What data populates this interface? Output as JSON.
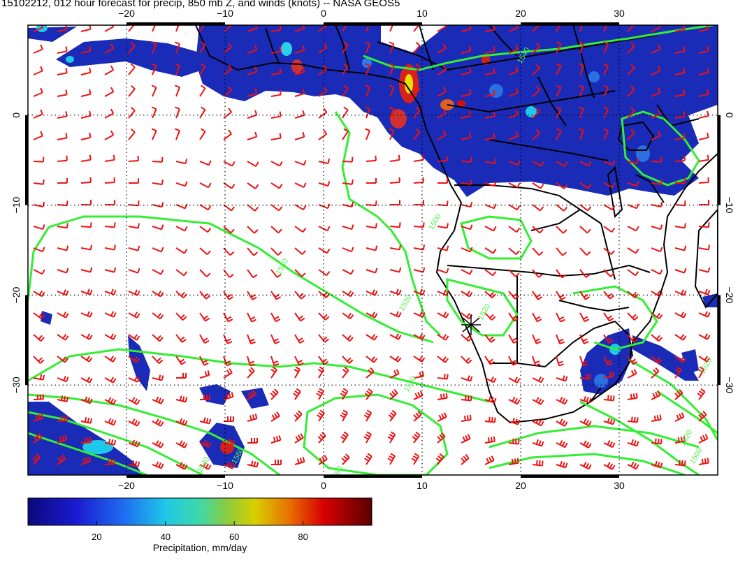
{
  "title": "15102212, 012 hour forecast for precip, 850 mb Z, and winds (knots) -- NASA GEOS5",
  "map": {
    "lon_range": [
      -30,
      40
    ],
    "lat_range": [
      -40,
      10
    ],
    "lon_ticks": [
      {
        "v": -20,
        "label": "−20"
      },
      {
        "v": -10,
        "label": "−10"
      },
      {
        "v": 0,
        "label": "0"
      },
      {
        "v": 10,
        "label": "10"
      },
      {
        "v": 20,
        "label": "20"
      },
      {
        "v": 30,
        "label": "30"
      }
    ],
    "lat_ticks": [
      {
        "v": 0,
        "label": "0"
      },
      {
        "v": -10,
        "label": "−10"
      },
      {
        "v": -20,
        "label": "−20"
      },
      {
        "v": -30,
        "label": "−30"
      }
    ],
    "grid": "dotted",
    "colors": {
      "contour": "#33ee33",
      "barb": "#ee1111",
      "coast": "#000000",
      "precip_base": "#1a2bb8"
    }
  },
  "colorbar": {
    "label": "Precipitation, mm/day",
    "range": [
      0,
      100
    ],
    "ticks": [
      {
        "v": 20,
        "label": "20"
      },
      {
        "v": 40,
        "label": "40"
      },
      {
        "v": 60,
        "label": "60"
      },
      {
        "v": 80,
        "label": "80"
      }
    ]
  },
  "contour_labels": [
    {
      "text": "1540",
      "lon": 20.5,
      "lat": 6.5
    },
    {
      "text": "1540",
      "lon": -4,
      "lat": -17
    },
    {
      "text": "1500",
      "lon": 11.5,
      "lat": -12
    },
    {
      "text": "1520",
      "lon": 8.5,
      "lat": -21
    },
    {
      "text": "1520",
      "lon": 16.5,
      "lat": -22
    },
    {
      "text": "1520",
      "lon": 39,
      "lat": -28
    },
    {
      "text": "1540",
      "lon": 9,
      "lat": -30
    },
    {
      "text": "1560",
      "lon": -8.5,
      "lat": -38
    },
    {
      "text": "1540",
      "lon": -12,
      "lat": -39
    },
    {
      "text": "1580",
      "lon": 1.5,
      "lat": -40
    },
    {
      "text": "1520",
      "lon": 37,
      "lat": -36
    },
    {
      "text": "1500",
      "lon": 38,
      "lat": -38
    }
  ]
}
